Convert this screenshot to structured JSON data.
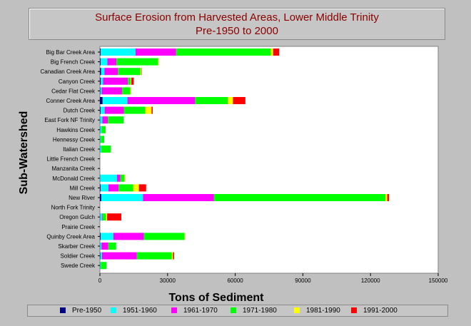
{
  "chart_data": {
    "type": "bar",
    "orientation": "horizontal",
    "stacked": true,
    "title": "Surface Erosion from Harvested Areas, Lower Middle Trinity",
    "subtitle": "Pre-1950 to 2000",
    "xlabel": "Tons of Sediment",
    "ylabel": "Sub-Watershed",
    "xlim": [
      0,
      150000
    ],
    "x_ticks": [
      "0",
      "30000",
      "60000",
      "90000",
      "120000",
      "150000"
    ],
    "grid": false,
    "legend_position": "bottom",
    "categories": [
      "Big Bar Creek Area",
      "Big French Creek",
      "Canadian Creek Area",
      "Canyon Creek",
      "Cedar Flat Creek",
      "Conner Creek Area",
      "Dutch Creek",
      "East Fork NF Trinity",
      "Hawkins Creek",
      "Hennessy Creek",
      "Italian Creek",
      "Little French Creek",
      "Manzanita Creek",
      "McDonald Creek",
      "Mill Creek",
      "New River",
      "North Fork Trinity",
      "Oregon Gulch",
      "Prairie Creek",
      "Quinby Creek Area",
      "Skarber Creek",
      "Soldier Creek",
      "Swede Creek"
    ],
    "series": [
      {
        "name": "Pre-1950",
        "color": "#000080",
        "values": [
          300,
          300,
          500,
          400,
          200,
          1200,
          300,
          100,
          100,
          100,
          100,
          0,
          0,
          100,
          300,
          600,
          0,
          100,
          0,
          300,
          100,
          200,
          100
        ]
      },
      {
        "name": "1951-1960",
        "color": "#00ffff",
        "values": [
          15500,
          3000,
          1500,
          1000,
          600,
          11000,
          1800,
          1000,
          600,
          300,
          500,
          0,
          0,
          7500,
          3500,
          18500,
          0,
          800,
          0,
          5700,
          600,
          700,
          300
        ]
      },
      {
        "name": "1961-1970",
        "color": "#ff00ff",
        "values": [
          18000,
          4000,
          6000,
          11000,
          9000,
          30000,
          8500,
          2400,
          0,
          0,
          0,
          0,
          0,
          1500,
          4500,
          31500,
          0,
          300,
          0,
          13500,
          3000,
          15500,
          0
        ]
      },
      {
        "name": "1971-1980",
        "color": "#00ff00",
        "values": [
          42000,
          18500,
          10000,
          1200,
          3700,
          14500,
          9500,
          7000,
          1800,
          1500,
          4200,
          0,
          0,
          1800,
          6500,
          76000,
          0,
          1500,
          0,
          18000,
          3500,
          15500,
          2500
        ]
      },
      {
        "name": "1981-1990",
        "color": "#ffff00",
        "values": [
          1000,
          300,
          300,
          300,
          300,
          2300,
          2800,
          0,
          0,
          0,
          0,
          0,
          0,
          300,
          2500,
          800,
          0,
          500,
          0,
          200,
          0,
          500,
          0
        ]
      },
      {
        "name": "1991-2000",
        "color": "#ff0000",
        "values": [
          2700,
          0,
          200,
          1100,
          0,
          5500,
          500,
          0,
          0,
          0,
          0,
          0,
          0,
          0,
          3200,
          800,
          0,
          6300,
          0,
          0,
          0,
          500,
          0
        ]
      }
    ]
  }
}
